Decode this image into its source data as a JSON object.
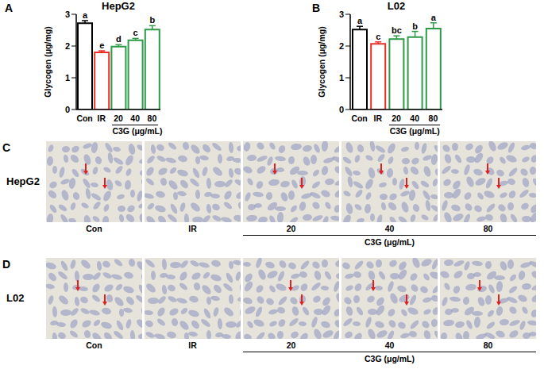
{
  "chart_data": [
    {
      "type": "bar",
      "panel": "A",
      "title": "HepG2",
      "y_label": "Glycogen (μg/mg)",
      "categories": [
        "Con",
        "IR",
        "20",
        "40",
        "80"
      ],
      "values": [
        2.72,
        1.8,
        1.98,
        2.18,
        2.52
      ],
      "errors": [
        0.08,
        0.05,
        0.06,
        0.06,
        0.12
      ],
      "letters": [
        "a",
        "e",
        "d",
        "c",
        "b"
      ],
      "colors": [
        "#000000",
        "#e8302a",
        "#2e9a48",
        "#2e9a48",
        "#2e9a48"
      ],
      "groups": [
        {
          "label": "C3G (μg/mL)",
          "categories": [
            "20",
            "40",
            "80"
          ]
        }
      ],
      "ylim": [
        0,
        3
      ],
      "yticks": [
        0,
        1,
        2,
        3
      ],
      "grid": false
    },
    {
      "type": "bar",
      "panel": "B",
      "title": "L02",
      "y_label": "Glycogen (μg/mg)",
      "categories": [
        "Con",
        "IR",
        "20",
        "40",
        "80"
      ],
      "values": [
        2.52,
        2.07,
        2.22,
        2.28,
        2.55
      ],
      "errors": [
        0.1,
        0.06,
        0.1,
        0.18,
        0.18
      ],
      "letters": [
        "a",
        "c",
        "bc",
        "b",
        "a"
      ],
      "colors": [
        "#000000",
        "#e8302a",
        "#2e9a48",
        "#2e9a48",
        "#2e9a48"
      ],
      "groups": [
        {
          "label": "C3G (μg/mL)",
          "categories": [
            "20",
            "40",
            "80"
          ]
        }
      ],
      "ylim": [
        0,
        3
      ],
      "yticks": [
        0,
        1,
        2,
        3
      ],
      "grid": false
    }
  ],
  "images": [
    {
      "panel": "C",
      "row_label": "HepG2",
      "captions": [
        "Con",
        "IR",
        "20",
        "40",
        "80"
      ],
      "groups": [
        {
          "label": "C3G (μg/mL)",
          "captions": [
            "20",
            "40",
            "80"
          ]
        }
      ]
    },
    {
      "panel": "D",
      "row_label": "L02",
      "captions": [
        "Con",
        "IR",
        "20",
        "40",
        "80"
      ],
      "groups": [
        {
          "label": "C3G (μg/mL)",
          "captions": [
            "20",
            "40",
            "80"
          ]
        }
      ]
    }
  ]
}
